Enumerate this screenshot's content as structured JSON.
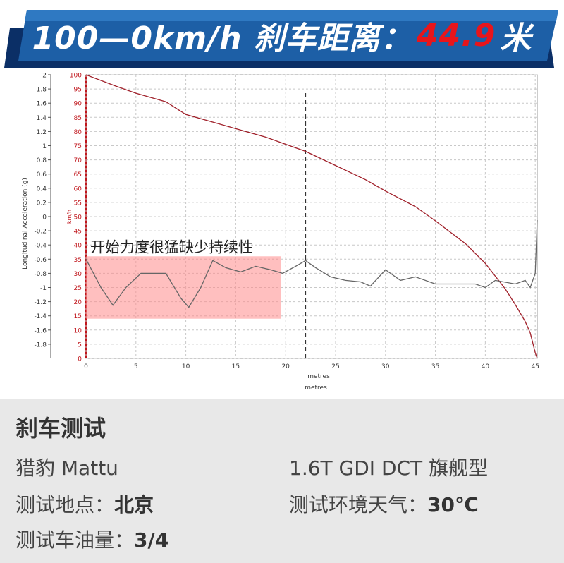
{
  "banner": {
    "prefix": "100—0km/h  刹车距离：",
    "value": "44.9",
    "unit": "米"
  },
  "chart_data": {
    "type": "line",
    "xlabel": "metres",
    "ylabel_left": "Longitudinal Acceleration (g)",
    "ylabel_right": "km/h",
    "xlim": [
      0,
      45.2
    ],
    "x_ticks": [
      0,
      5,
      10,
      15,
      20,
      25,
      30,
      35,
      40,
      45
    ],
    "y_left_lim": [
      -2,
      2
    ],
    "y_left_ticks": [
      "2",
      "1.8",
      "1.6",
      "1.4",
      "1.2",
      "1",
      "0.8",
      "0.6",
      "0.4",
      "0.2",
      "0",
      "-0.2",
      "-0.4",
      "-0.6",
      "-0.8",
      "-1",
      "-1.2",
      "-1.4",
      "-1.6",
      "-1.8"
    ],
    "y_right_lim": [
      0,
      100
    ],
    "y_right_ticks": [
      "100",
      "95",
      "90",
      "85",
      "80",
      "75",
      "70",
      "65",
      "60",
      "55",
      "50",
      "45",
      "40",
      "35",
      "30",
      "25",
      "20",
      "15",
      "10",
      "5",
      "0"
    ],
    "grid": true,
    "marker_x": 22,
    "annotation": {
      "text": "开始力度很猛缺少持续性",
      "x_range": [
        0,
        19.5
      ],
      "y_range_kmh": [
        14,
        36
      ]
    },
    "series": [
      {
        "axis": "right",
        "color": "#a0202a",
        "x": [
          0,
          3,
          5,
          8,
          10,
          13,
          15,
          18,
          20,
          22,
          25,
          28,
          30,
          33,
          35,
          38,
          40,
          42,
          43,
          44,
          44.5,
          45,
          45.2
        ],
        "y": [
          100,
          96,
          93.5,
          90.5,
          86,
          83,
          81,
          78,
          75.5,
          73,
          68,
          63,
          59,
          53.5,
          48.5,
          40.5,
          33.5,
          24.5,
          19,
          13,
          9,
          2,
          0
        ]
      },
      {
        "axis": "left",
        "color": "#666666",
        "x": [
          0,
          1.5,
          2.7,
          4,
          5.5,
          8,
          9.5,
          10.3,
          11.5,
          12.7,
          14,
          15.5,
          17,
          18.5,
          19.7,
          21,
          22,
          23,
          24.5,
          26,
          27.5,
          28.5,
          30,
          31.5,
          33,
          35,
          37,
          39,
          40,
          41,
          43,
          44,
          44.5,
          45,
          45.2
        ],
        "y": [
          -0.6,
          -1.0,
          -1.25,
          -1.0,
          -0.8,
          -0.8,
          -1.15,
          -1.28,
          -1.0,
          -0.62,
          -0.72,
          -0.78,
          -0.7,
          -0.75,
          -0.8,
          -0.7,
          -0.62,
          -0.72,
          -0.85,
          -0.9,
          -0.92,
          -0.98,
          -0.75,
          -0.9,
          -0.85,
          -0.95,
          -0.95,
          -0.95,
          -1.0,
          -0.9,
          -0.95,
          -0.9,
          -1.0,
          -0.8,
          -0.05
        ]
      }
    ]
  },
  "info": {
    "title": "刹车测试",
    "model": "猎豹 Mattu",
    "trim": "1.6T GDI DCT 旗舰型",
    "location_label": "测试地点：",
    "location_value": "北京",
    "weather_label": "测试环境天气：",
    "weather_value": "30℃",
    "fuel_label": "测试车油量：",
    "fuel_value": "3/4"
  }
}
